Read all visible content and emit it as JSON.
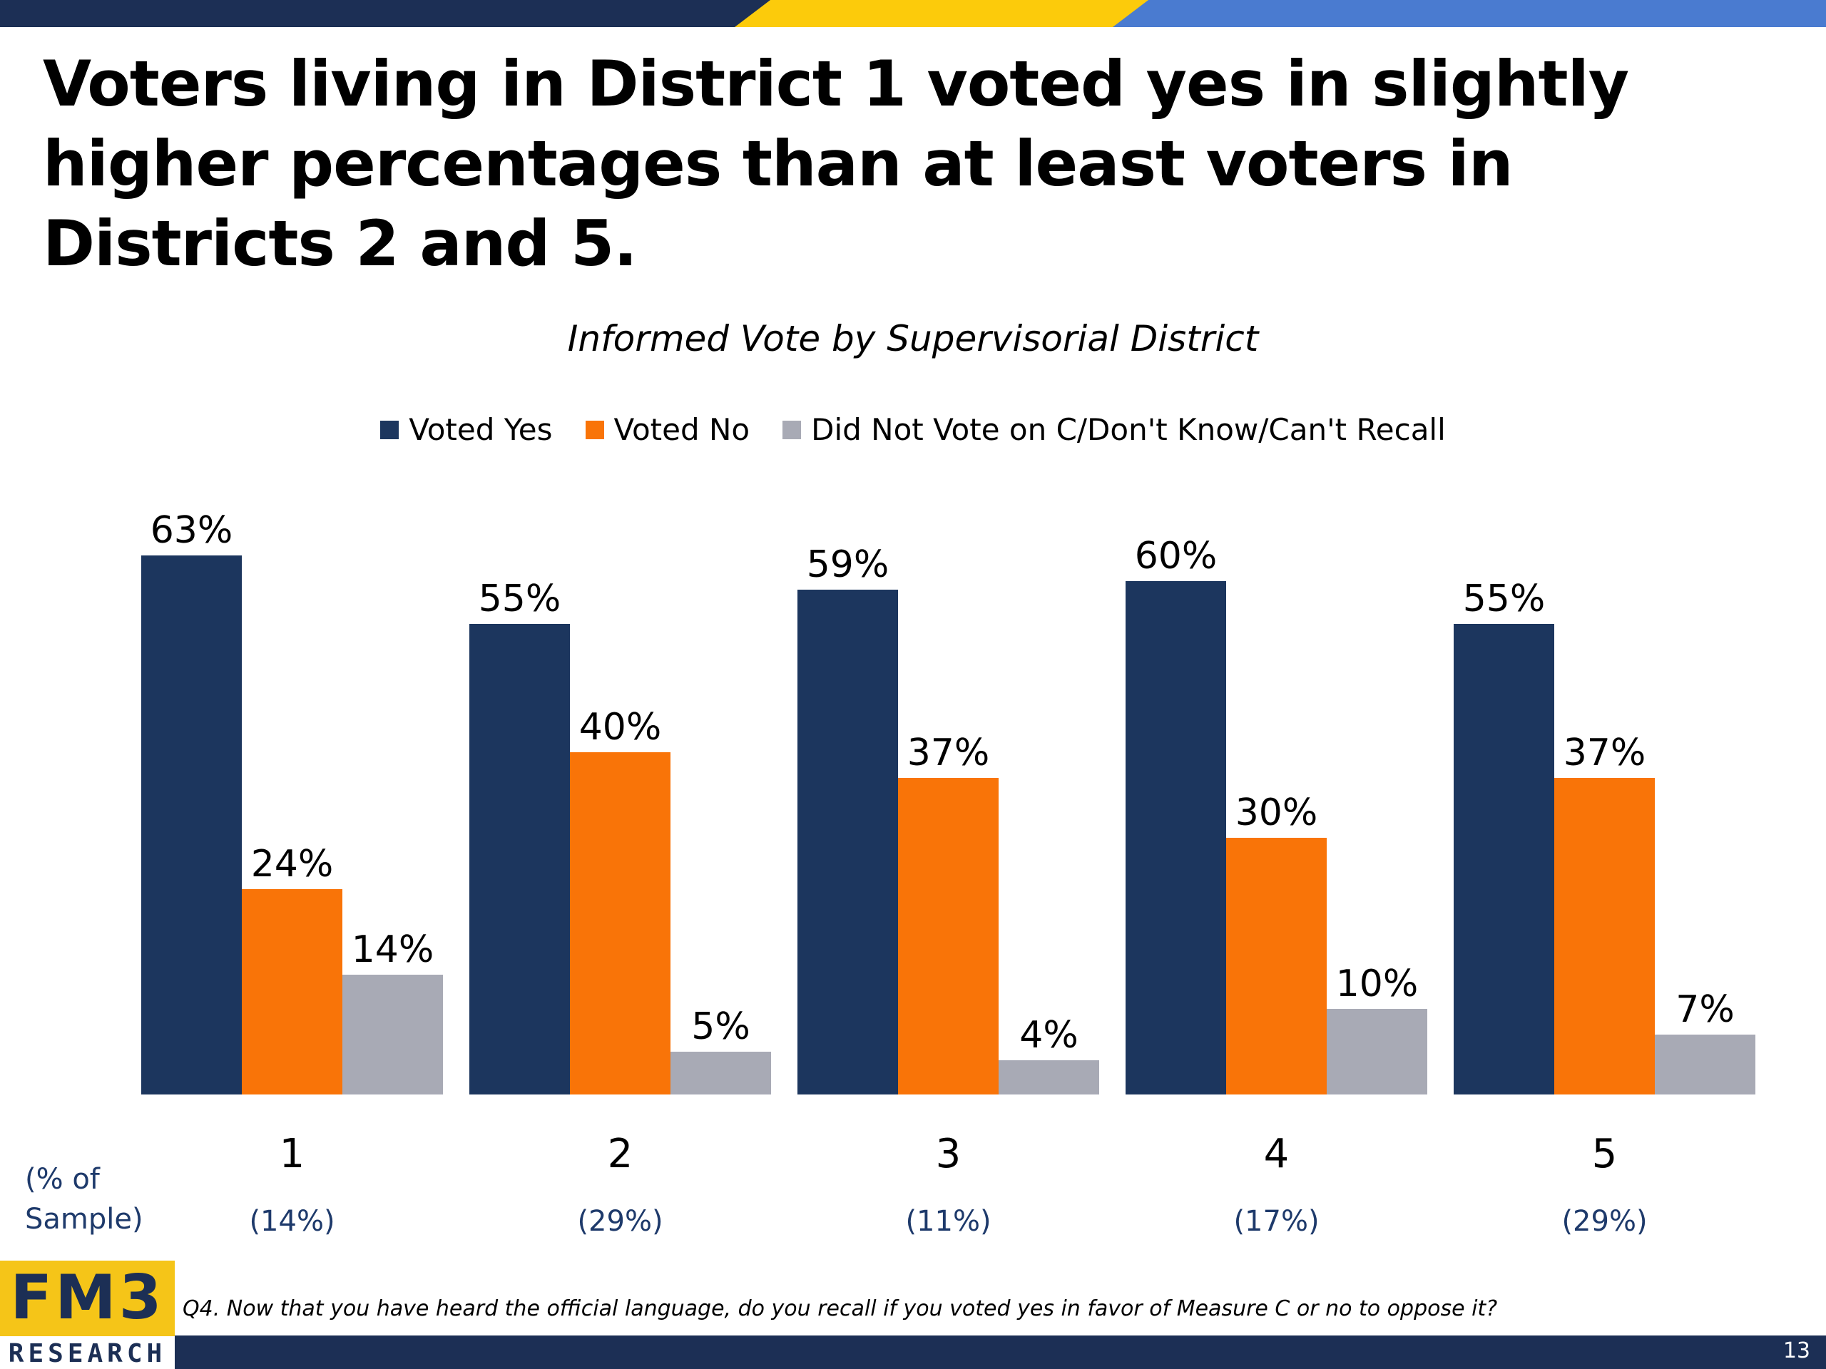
{
  "slide": {
    "title": "Voters living in District 1 voted yes in slightly higher percentages than at least voters in Districts 2 and 5.",
    "sample_caption": "(% of Sample)",
    "footnote": "Q4. Now that you have heard the official language, do you recall if you voted yes in favor of Measure C or no to oppose it?",
    "page_number": "13"
  },
  "logo": {
    "top": "FM3",
    "bottom": "RESEARCH"
  },
  "colors": {
    "navy": "#1c365e",
    "orange": "#f97408",
    "gray": "#a8aab5",
    "band_blue": "#4a7bd0",
    "band_yellow": "#fccb0b"
  },
  "chart_data": {
    "type": "bar",
    "title": "Informed Vote by Supervisorial District",
    "categories": [
      "1",
      "2",
      "3",
      "4",
      "5"
    ],
    "sample_share": [
      "(14%)",
      "(29%)",
      "(11%)",
      "(17%)",
      "(29%)"
    ],
    "series": [
      {
        "name": "Voted Yes",
        "color": "#1c365e",
        "values": [
          63,
          55,
          59,
          60,
          55
        ],
        "labels": [
          "63%",
          "55%",
          "59%",
          "60%",
          "55%"
        ]
      },
      {
        "name": "Voted No",
        "color": "#f97408",
        "values": [
          24,
          40,
          37,
          30,
          37
        ],
        "labels": [
          "24%",
          "40%",
          "37%",
          "30%",
          "37%"
        ]
      },
      {
        "name": "Did Not Vote on C/Don't Know/Can't Recall",
        "color": "#a8aab5",
        "values": [
          14,
          5,
          4,
          10,
          7
        ],
        "labels": [
          "14%",
          "5%",
          "4%",
          "10%",
          "7%"
        ]
      }
    ],
    "ylim": [
      0,
      100
    ],
    "legend": "top-center",
    "grid": false
  }
}
